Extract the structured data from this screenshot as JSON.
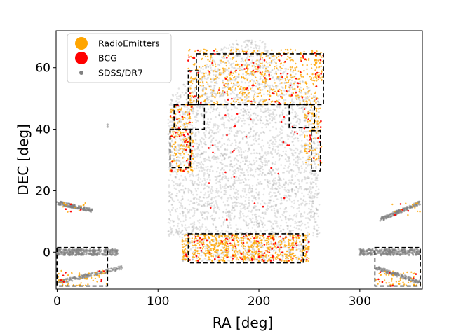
{
  "chart_data": {
    "type": "scatter",
    "xlabel": "RA [deg]",
    "ylabel": "DEC [deg]",
    "xlim": [
      -1,
      362
    ],
    "ylim": [
      -12,
      72
    ],
    "xticks": [
      0,
      100,
      200,
      300
    ],
    "yticks": [
      0,
      20,
      40,
      60
    ],
    "legend": {
      "placement": "top-left",
      "entries": [
        {
          "label": "RadioEmitters",
          "color": "#ffa500",
          "marker": "large-circle"
        },
        {
          "label": "BCG",
          "color": "#ff0000",
          "marker": "large-circle"
        },
        {
          "label": "SDSS/DR7",
          "color": "#808080",
          "marker": "small-circle"
        }
      ]
    },
    "series": [
      {
        "name": "SDSS/DR7",
        "color": "#808080",
        "description_regions": [
          {
            "shape": "footprint",
            "ra": [
              110,
              260
            ],
            "dec": [
              -3,
              69
            ]
          },
          {
            "shape": "stripe",
            "ra": [
              0,
              60
            ],
            "dec": [
              -1,
              1
            ]
          },
          {
            "shape": "stripe",
            "ra": [
              300,
              360
            ],
            "dec": [
              -1,
              1
            ]
          },
          {
            "shape": "arc",
            "ra": [
              0,
              35
            ],
            "dec": [
              13,
              16
            ]
          },
          {
            "shape": "arc",
            "ra": [
              320,
              360
            ],
            "dec": [
              10,
              16
            ]
          },
          {
            "shape": "arc",
            "ra": [
              0,
              65
            ],
            "dec": [
              -11,
              -5
            ]
          },
          {
            "shape": "arc",
            "ra": [
              315,
              360
            ],
            "dec": [
              -11,
              -5
            ]
          }
        ]
      },
      {
        "name": "RadioEmitters",
        "color": "#ffa500"
      },
      {
        "name": "BCG",
        "color": "#ff0000"
      }
    ],
    "boxes": [
      {
        "ra": [
          0,
          50
        ],
        "dec": [
          -11,
          1.5
        ]
      },
      {
        "ra": [
          315,
          360
        ],
        "dec": [
          -11,
          1.5
        ]
      },
      {
        "ra": [
          130,
          244
        ],
        "dec": [
          -3.5,
          6
        ]
      },
      {
        "ra": [
          112,
          132
        ],
        "dec": [
          27.5,
          40
        ]
      },
      {
        "ra": [
          116,
          146
        ],
        "dec": [
          40,
          48
        ]
      },
      {
        "ra": [
          130,
          140
        ],
        "dec": [
          48,
          59
        ]
      },
      {
        "ra": [
          138,
          264
        ],
        "dec": [
          48,
          64.5
        ]
      },
      {
        "ra": [
          230,
          255
        ],
        "dec": [
          40.5,
          48
        ]
      },
      {
        "ra": [
          252,
          261
        ],
        "dec": [
          26.5,
          39.5
        ]
      }
    ]
  }
}
